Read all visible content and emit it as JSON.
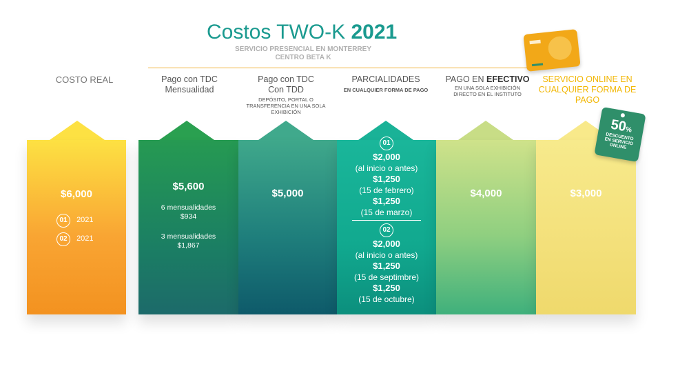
{
  "header": {
    "title_light": "Costos TWO-K ",
    "title_bold": "2021",
    "subtitle_1": "SERVICIO PRESENCIAL EN MONTERREY",
    "subtitle_2": "CENTRO BETA K"
  },
  "columns": [
    {
      "heading": "COSTO REAL",
      "price": "$6,000",
      "items": [
        {
          "num": "01",
          "label": "2021"
        },
        {
          "num": "02",
          "label": "2021"
        }
      ]
    },
    {
      "heading_1": "Pago con TDC",
      "heading_2": "Mensualidad",
      "price": "$5,600",
      "plan_a_1": "6 mensualidades",
      "plan_a_2": "$934",
      "plan_b_1": "3 mensualidades",
      "plan_b_2": "$1,867"
    },
    {
      "heading_1": "Pago con TDC",
      "heading_2": "Con TDD",
      "note": "DEPÓSITO, PORTAL O TRANSFERENCIA EN UNA SOLA EXHIBICIÓN",
      "price": "$5,000"
    },
    {
      "heading": "PARCIALIDADES",
      "note": "EN CUALQUIER FORMA DE PAGO",
      "opt1": {
        "num": "01",
        "lines": [
          {
            "amount": "$2,000",
            "when": "(al inicio o antes)"
          },
          {
            "amount": "$1,250",
            "when": "(15 de febrero)"
          },
          {
            "amount": "$1,250",
            "when": "(15 de marzo)"
          }
        ]
      },
      "opt2": {
        "num": "02",
        "lines": [
          {
            "amount": "$2,000",
            "when": "(al inicio o antes)"
          },
          {
            "amount": "$1,250",
            "when": "(15 de septimbre)"
          },
          {
            "amount": "$1,250",
            "when": "(15 de octubre)"
          }
        ]
      }
    },
    {
      "heading_light": "PAGO EN ",
      "heading_bold": "EFECTIVO",
      "note": "EN UNA SOLA EXHIBICIÓN DIRECTO EN  EL INSTITUTO",
      "price": "$4,000"
    },
    {
      "heading": "SERVICIO ONLINE EN CUALQUIER FORMA DE PAGO",
      "price": "$3,000"
    }
  ],
  "tag": {
    "percent": "50",
    "sign": "%",
    "line1": "DESCUENTO",
    "line2": "EN SERVICIO",
    "line3": "ONLINE"
  },
  "colors": {
    "teal_title": "#1a9a8f",
    "accent": "#f0b23a",
    "online": "#f2b705"
  }
}
